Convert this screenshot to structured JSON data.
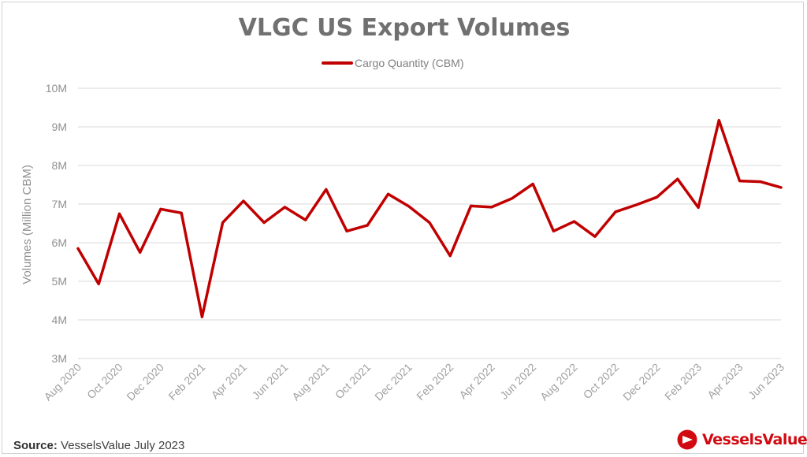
{
  "chart_data": {
    "type": "line",
    "title": "VLGC US Export Volumes",
    "ylabel": "Volumes (Million CBM)",
    "xlabel": "",
    "ylim": [
      3,
      10
    ],
    "y_tick_labels": [
      "3M",
      "4M",
      "5M",
      "6M",
      "7M",
      "8M",
      "9M",
      "10M"
    ],
    "x": [
      "Aug 2020",
      "Sep 2020",
      "Oct 2020",
      "Nov 2020",
      "Dec 2020",
      "Jan 2021",
      "Feb 2021",
      "Mar 2021",
      "Apr 2021",
      "May 2021",
      "Jun 2021",
      "Jul 2021",
      "Aug 2021",
      "Sep 2021",
      "Oct 2021",
      "Nov 2021",
      "Dec 2021",
      "Jan 2022",
      "Feb 2022",
      "Mar 2022",
      "Apr 2022",
      "May 2022",
      "Jun 2022",
      "Jul 2022",
      "Aug 2022",
      "Sep 2022",
      "Oct 2022",
      "Nov 2022",
      "Dec 2022",
      "Jan 2023",
      "Feb 2023",
      "Mar 2023",
      "Apr 2023",
      "May 2023",
      "Jun 2023"
    ],
    "x_tick_labels": [
      "Aug 2020",
      "Oct 2020",
      "Dec 2020",
      "Feb 2021",
      "Apr 2021",
      "Jun 2021",
      "Aug 2021",
      "Oct 2021",
      "Dec 2021",
      "Feb 2022",
      "Apr 2022",
      "Jun 2022",
      "Aug 2022",
      "Oct 2022",
      "Dec 2022",
      "Feb 2023",
      "Apr 2023",
      "Jun 2023"
    ],
    "series": [
      {
        "name": "Cargo Quantity (CBM)",
        "color": "#c00000",
        "values": [
          5.85,
          4.93,
          6.75,
          5.75,
          6.87,
          6.77,
          4.08,
          6.52,
          7.08,
          6.52,
          6.92,
          6.59,
          7.38,
          6.3,
          6.45,
          7.26,
          6.94,
          6.52,
          5.66,
          6.95,
          6.92,
          7.15,
          7.52,
          6.3,
          6.55,
          6.16,
          6.8,
          6.98,
          7.18,
          7.65,
          6.91,
          9.17,
          7.6,
          7.58,
          7.43
        ]
      }
    ],
    "grid": "horizontal",
    "legend_position": "top"
  },
  "footer": {
    "source_label": "Source:",
    "source_text": "VesselsValue July 2023"
  },
  "brand": {
    "name": "VesselsValue",
    "color": "#d10a11",
    "icon": "vesselsvalue-logo-icon"
  }
}
